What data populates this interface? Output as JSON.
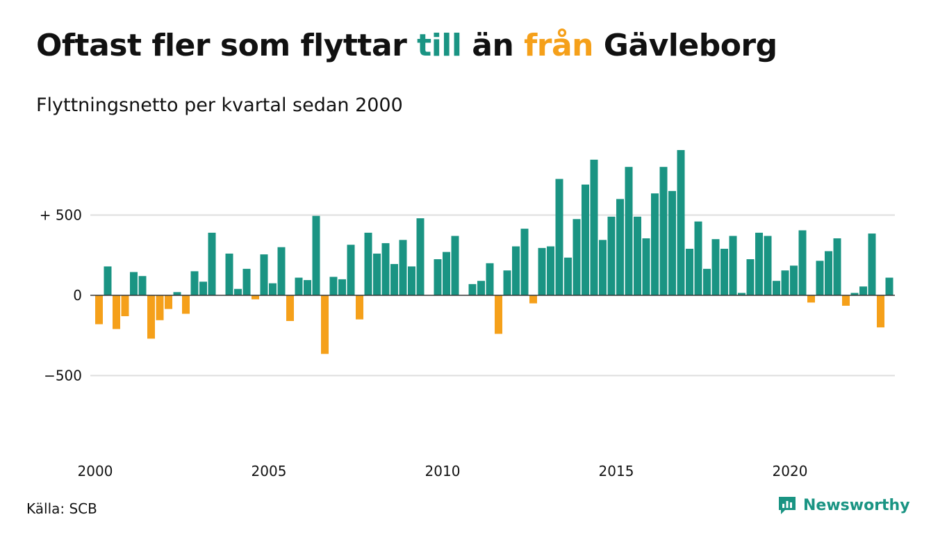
{
  "title": {
    "part1": "Oftast fler som flyttar ",
    "highlight_pos": "till",
    "part2": " än ",
    "highlight_neg": "från",
    "part3": " Gävleborg"
  },
  "subtitle": "Flyttningsnetto per kvartal sedan 2000",
  "source": "Källa: SCB",
  "brand": {
    "name": "Newsworthy",
    "icon": "newsworthy-logo-icon"
  },
  "colors": {
    "positive": "#1a9483",
    "negative": "#f5a01a",
    "grid": "#dddddd",
    "zero_line": "#333333"
  },
  "chart_data": {
    "type": "bar",
    "x_start": "2000 Q1",
    "x_step": "quarter",
    "ylim": [
      -1000,
      1000
    ],
    "yticks": [
      {
        "value": 500,
        "label": "+ 500"
      },
      {
        "value": 0,
        "label": "0"
      },
      {
        "value": -500,
        "label": "−500"
      }
    ],
    "xticks": [
      {
        "index": 0,
        "label": "2000"
      },
      {
        "index": 20,
        "label": "2005"
      },
      {
        "index": 40,
        "label": "2010"
      },
      {
        "index": 60,
        "label": "2015"
      },
      {
        "index": 80,
        "label": "2020"
      }
    ],
    "grid": true,
    "values": [
      -180,
      180,
      -210,
      -130,
      145,
      120,
      -270,
      -155,
      -85,
      20,
      -115,
      150,
      85,
      390,
      0,
      260,
      40,
      165,
      -25,
      255,
      75,
      300,
      -160,
      110,
      95,
      495,
      -365,
      115,
      100,
      315,
      -150,
      390,
      260,
      325,
      195,
      345,
      180,
      480,
      0,
      225,
      270,
      370,
      0,
      70,
      90,
      200,
      -240,
      155,
      305,
      415,
      -50,
      295,
      305,
      725,
      235,
      475,
      690,
      845,
      345,
      490,
      600,
      800,
      490,
      355,
      635,
      800,
      650,
      905,
      290,
      460,
      165,
      350,
      290,
      370,
      15,
      225,
      390,
      370,
      90,
      155,
      185,
      405,
      -45,
      215,
      275,
      355,
      -65,
      15,
      55,
      385,
      -200,
      110
    ]
  }
}
